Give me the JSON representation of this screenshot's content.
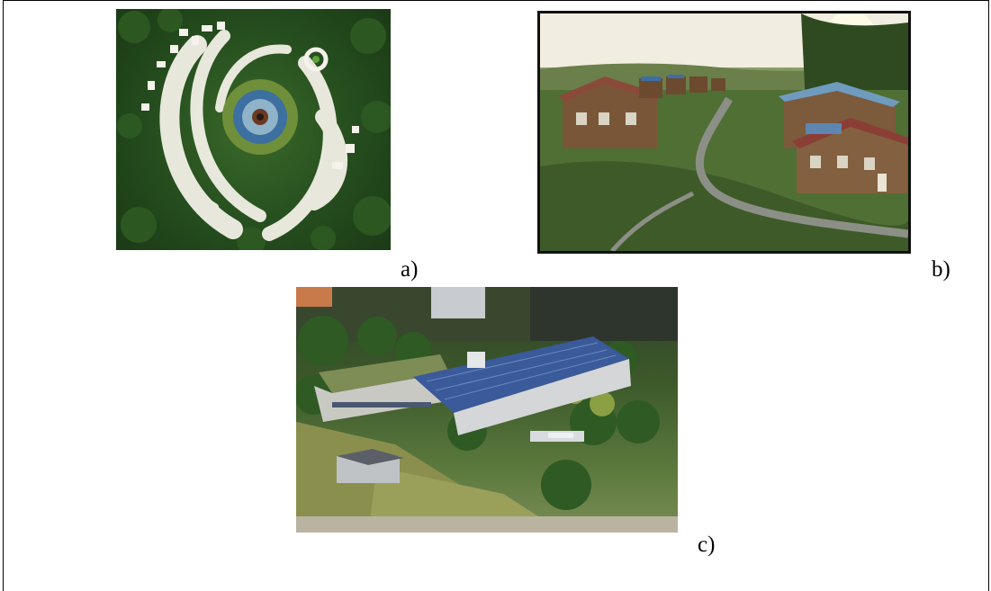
{
  "captions": {
    "a": "a)",
    "b": "b)",
    "c": "c)"
  },
  "colors": {
    "border": "#000000",
    "vegetation_dark": "#1b3a16",
    "vegetation_mid": "#3f6b2c",
    "roof_solar": "#3a5a9a",
    "timber": "#7a5638"
  }
}
